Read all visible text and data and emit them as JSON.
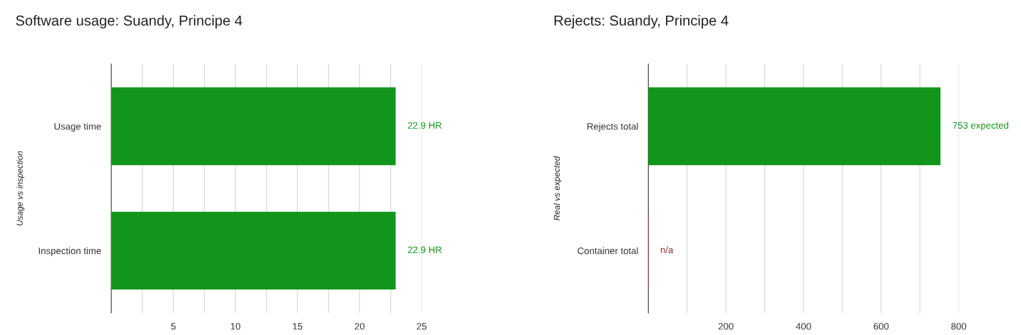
{
  "chart_data": [
    {
      "type": "bar",
      "orientation": "horizontal",
      "title": "Software usage: Suandy, Principe 4",
      "ylabel": "Usage vs inspection",
      "categories": [
        "Usage time",
        "Inspection time"
      ],
      "values": [
        22.9,
        22.9
      ],
      "colors": [
        "#11961b",
        "#11961b"
      ],
      "value_labels": [
        "22.9 HR",
        "22.9 HR"
      ],
      "xlim": [
        0,
        25
      ],
      "xticks": [
        {
          "value": 2.5,
          "label": null
        },
        5,
        {
          "value": 7.5,
          "label": null
        },
        10,
        {
          "value": 12.5,
          "label": null
        },
        15,
        {
          "value": 17.5,
          "label": null
        },
        20,
        {
          "value": 22.5,
          "label": null
        },
        25
      ],
      "grid": "x"
    },
    {
      "type": "bar",
      "orientation": "horizontal",
      "title": "Rejects: Suandy, Principe 4",
      "ylabel": "Real vs expected",
      "categories": [
        "Rejects total",
        "Container total"
      ],
      "values": [
        753,
        0
      ],
      "colors": [
        "#11961b",
        "#8b3a2a"
      ],
      "value_labels": [
        "753 expected",
        "n/a"
      ],
      "xlim": [
        0,
        800
      ],
      "xticks": [
        {
          "value": 100,
          "label": null
        },
        200,
        {
          "value": 300,
          "label": null
        },
        400,
        {
          "value": 500,
          "label": null
        },
        600,
        {
          "value": 700,
          "label": null
        },
        800
      ],
      "grid": "x"
    }
  ]
}
